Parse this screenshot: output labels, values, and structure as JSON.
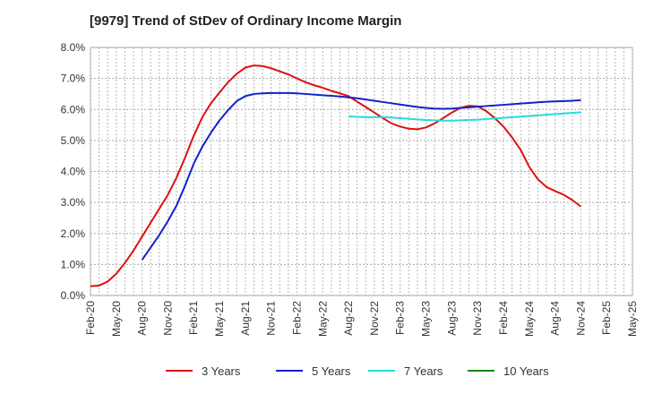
{
  "chart_data": {
    "type": "line",
    "title": "[9979]  Trend of StDev of Ordinary Income Margin",
    "xlabel": "",
    "ylabel": "",
    "ylim": [
      0,
      8
    ],
    "y_ticks": [
      "0.0%",
      "1.0%",
      "2.0%",
      "3.0%",
      "4.0%",
      "5.0%",
      "6.0%",
      "7.0%",
      "8.0%"
    ],
    "x_ticks": [
      "Feb-20",
      "May-20",
      "Aug-20",
      "Nov-20",
      "Feb-21",
      "May-21",
      "Aug-21",
      "Nov-21",
      "Feb-22",
      "May-22",
      "Aug-22",
      "Nov-22",
      "Feb-23",
      "May-23",
      "Aug-23",
      "Nov-23",
      "Feb-24",
      "May-24",
      "Aug-24",
      "Nov-24",
      "Feb-25",
      "May-25"
    ],
    "grid": true,
    "legend_position": "bottom",
    "series": [
      {
        "name": "3 Years",
        "color": "#dd1111",
        "points": [
          [
            "Feb-20",
            0.3
          ],
          [
            "Mar-20",
            0.32
          ],
          [
            "Apr-20",
            0.45
          ],
          [
            "May-20",
            0.7
          ],
          [
            "Jun-20",
            1.05
          ],
          [
            "Jul-20",
            1.45
          ],
          [
            "Aug-20",
            1.9
          ],
          [
            "Sep-20",
            2.35
          ],
          [
            "Oct-20",
            2.8
          ],
          [
            "Nov-20",
            3.25
          ],
          [
            "Dec-20",
            3.8
          ],
          [
            "Jan-21",
            4.45
          ],
          [
            "Feb-21",
            5.15
          ],
          [
            "Mar-21",
            5.75
          ],
          [
            "Apr-21",
            6.2
          ],
          [
            "May-21",
            6.55
          ],
          [
            "Jun-21",
            6.88
          ],
          [
            "Jul-21",
            7.15
          ],
          [
            "Aug-21",
            7.35
          ],
          [
            "Sep-21",
            7.42
          ],
          [
            "Oct-21",
            7.4
          ],
          [
            "Nov-21",
            7.33
          ],
          [
            "Dec-21",
            7.23
          ],
          [
            "Jan-22",
            7.13
          ],
          [
            "Feb-22",
            7.0
          ],
          [
            "Mar-22",
            6.88
          ],
          [
            "Apr-22",
            6.78
          ],
          [
            "May-22",
            6.7
          ],
          [
            "Jun-22",
            6.6
          ],
          [
            "Jul-22",
            6.52
          ],
          [
            "Aug-22",
            6.43
          ],
          [
            "Sep-22",
            6.25
          ],
          [
            "Oct-22",
            6.08
          ],
          [
            "Nov-22",
            5.9
          ],
          [
            "Dec-22",
            5.72
          ],
          [
            "Jan-23",
            5.55
          ],
          [
            "Feb-23",
            5.45
          ],
          [
            "Mar-23",
            5.38
          ],
          [
            "Apr-23",
            5.36
          ],
          [
            "May-23",
            5.42
          ],
          [
            "Jun-23",
            5.55
          ],
          [
            "Jul-23",
            5.72
          ],
          [
            "Aug-23",
            5.9
          ],
          [
            "Sep-23",
            6.05
          ],
          [
            "Oct-23",
            6.12
          ],
          [
            "Nov-23",
            6.1
          ],
          [
            "Dec-23",
            5.95
          ],
          [
            "Jan-24",
            5.72
          ],
          [
            "Feb-24",
            5.45
          ],
          [
            "Mar-24",
            5.1
          ],
          [
            "Apr-24",
            4.7
          ],
          [
            "May-24",
            4.15
          ],
          [
            "Jun-24",
            3.75
          ],
          [
            "Jul-24",
            3.5
          ],
          [
            "Aug-24",
            3.37
          ],
          [
            "Sep-24",
            3.25
          ],
          [
            "Oct-24",
            3.08
          ],
          [
            "Nov-24",
            2.87
          ]
        ]
      },
      {
        "name": "5 Years",
        "color": "#1122cc",
        "points": [
          [
            "Aug-20",
            1.15
          ],
          [
            "Sep-20",
            1.55
          ],
          [
            "Oct-20",
            1.95
          ],
          [
            "Nov-20",
            2.4
          ],
          [
            "Dec-20",
            2.9
          ],
          [
            "Jan-21",
            3.55
          ],
          [
            "Feb-21",
            4.25
          ],
          [
            "Mar-21",
            4.8
          ],
          [
            "Apr-21",
            5.25
          ],
          [
            "May-21",
            5.65
          ],
          [
            "Jun-21",
            5.98
          ],
          [
            "Jul-21",
            6.27
          ],
          [
            "Aug-21",
            6.43
          ],
          [
            "Sep-21",
            6.5
          ],
          [
            "Oct-21",
            6.52
          ],
          [
            "Nov-21",
            6.53
          ],
          [
            "Dec-21",
            6.53
          ],
          [
            "Jan-22",
            6.53
          ],
          [
            "Feb-22",
            6.52
          ],
          [
            "Mar-22",
            6.5
          ],
          [
            "Apr-22",
            6.48
          ],
          [
            "May-22",
            6.46
          ],
          [
            "Jun-22",
            6.44
          ],
          [
            "Jul-22",
            6.42
          ],
          [
            "Aug-22",
            6.39
          ],
          [
            "Sep-22",
            6.36
          ],
          [
            "Oct-22",
            6.32
          ],
          [
            "Nov-22",
            6.28
          ],
          [
            "Dec-22",
            6.24
          ],
          [
            "Jan-23",
            6.2
          ],
          [
            "Feb-23",
            6.16
          ],
          [
            "Mar-23",
            6.12
          ],
          [
            "Apr-23",
            6.08
          ],
          [
            "May-23",
            6.05
          ],
          [
            "Jun-23",
            6.03
          ],
          [
            "Jul-23",
            6.02
          ],
          [
            "Aug-23",
            6.03
          ],
          [
            "Sep-23",
            6.05
          ],
          [
            "Oct-23",
            6.07
          ],
          [
            "Nov-23",
            6.09
          ],
          [
            "Dec-23",
            6.11
          ],
          [
            "Jan-24",
            6.13
          ],
          [
            "Feb-24",
            6.15
          ],
          [
            "Mar-24",
            6.17
          ],
          [
            "Apr-24",
            6.19
          ],
          [
            "May-24",
            6.21
          ],
          [
            "Jun-24",
            6.23
          ],
          [
            "Jul-24",
            6.25
          ],
          [
            "Aug-24",
            6.26
          ],
          [
            "Sep-24",
            6.27
          ],
          [
            "Oct-24",
            6.28
          ],
          [
            "Nov-24",
            6.3
          ]
        ]
      },
      {
        "name": "7 Years",
        "color": "#22dddd",
        "points": [
          [
            "Aug-22",
            5.78
          ],
          [
            "Sep-22",
            5.76
          ],
          [
            "Oct-22",
            5.75
          ],
          [
            "Nov-22",
            5.75
          ],
          [
            "Dec-22",
            5.75
          ],
          [
            "Jan-23",
            5.74
          ],
          [
            "Feb-23",
            5.72
          ],
          [
            "Mar-23",
            5.7
          ],
          [
            "Apr-23",
            5.68
          ],
          [
            "May-23",
            5.66
          ],
          [
            "Jun-23",
            5.65
          ],
          [
            "Jul-23",
            5.64
          ],
          [
            "Aug-23",
            5.64
          ],
          [
            "Sep-23",
            5.65
          ],
          [
            "Oct-23",
            5.66
          ],
          [
            "Nov-23",
            5.67
          ],
          [
            "Dec-23",
            5.69
          ],
          [
            "Jan-24",
            5.71
          ],
          [
            "Feb-24",
            5.73
          ],
          [
            "Mar-24",
            5.75
          ],
          [
            "Apr-24",
            5.77
          ],
          [
            "May-24",
            5.79
          ],
          [
            "Jun-24",
            5.81
          ],
          [
            "Jul-24",
            5.83
          ],
          [
            "Aug-24",
            5.85
          ],
          [
            "Sep-24",
            5.87
          ],
          [
            "Oct-24",
            5.89
          ],
          [
            "Nov-24",
            5.91
          ]
        ]
      },
      {
        "name": "10 Years",
        "color": "#118811",
        "points": []
      }
    ]
  }
}
